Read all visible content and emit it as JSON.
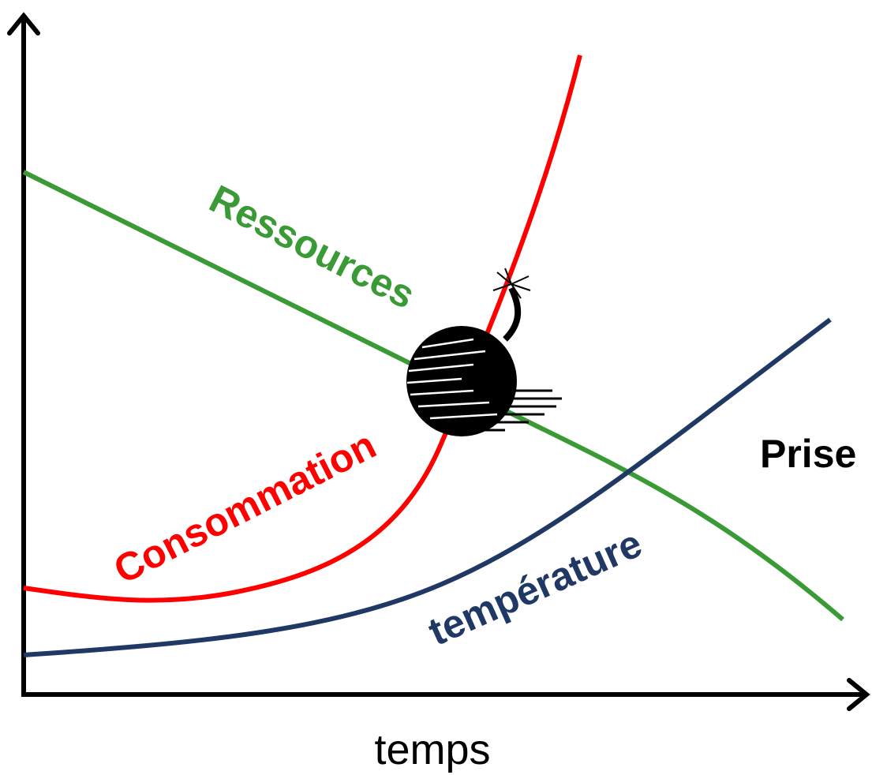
{
  "curves": [
    {
      "label": "Ressources"
    },
    {
      "label": "Consommation"
    },
    {
      "label": "température"
    }
  ],
  "side_text": "Prise",
  "x_axis_label": "temps"
}
